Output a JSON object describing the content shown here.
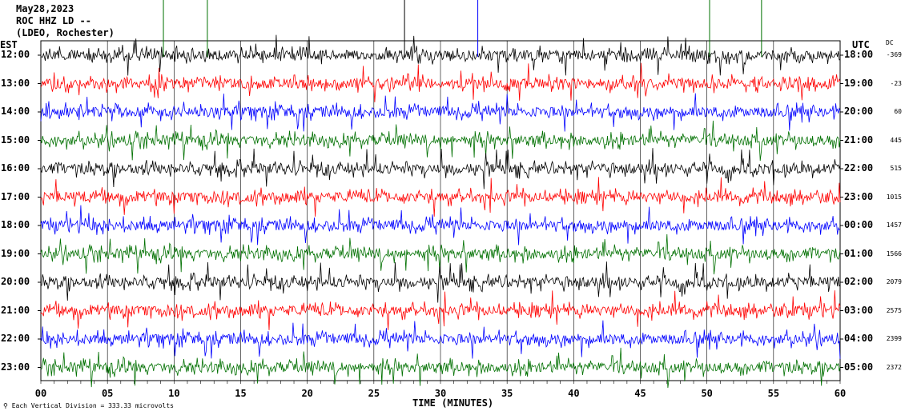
{
  "header": {
    "date": "May28,2023",
    "station": "ROC HHZ LD --",
    "network": "(LDEO, Rochester)"
  },
  "axes": {
    "left_title": "EST",
    "right_title": "UTC",
    "dc_title": "DC",
    "xlabel": "TIME (MINUTES)",
    "scale_note": "Each Vertical Division =  333.33 microvolts"
  },
  "chart_data": {
    "type": "line",
    "title": "May28,2023 ROC HHZ LD -- (LDEO, Rochester)",
    "xlabel": "TIME (MINUTES)",
    "xlim": [
      0,
      60
    ],
    "x_ticks": [
      "00",
      "05",
      "10",
      "15",
      "20",
      "25",
      "30",
      "35",
      "40",
      "45",
      "50",
      "55",
      "60"
    ],
    "color_cycle": [
      "#000000",
      "#ff0000",
      "#0000ff",
      "#007000"
    ],
    "rows": [
      {
        "est": "12:00",
        "utc": "18:00",
        "dc": "-369",
        "color": "#000000"
      },
      {
        "est": "13:00",
        "utc": "19:00",
        "dc": "-23",
        "color": "#ff0000"
      },
      {
        "est": "14:00",
        "utc": "20:00",
        "dc": "60",
        "color": "#0000ff"
      },
      {
        "est": "15:00",
        "utc": "21:00",
        "dc": "445",
        "color": "#007000"
      },
      {
        "est": "16:00",
        "utc": "22:00",
        "dc": "515",
        "color": "#000000"
      },
      {
        "est": "17:00",
        "utc": "23:00",
        "dc": "1015",
        "color": "#ff0000"
      },
      {
        "est": "18:00",
        "utc": "00:00",
        "dc": "1457",
        "color": "#0000ff"
      },
      {
        "est": "19:00",
        "utc": "01:00",
        "dc": "1566",
        "color": "#007000"
      },
      {
        "est": "20:00",
        "utc": "02:00",
        "dc": "2079",
        "color": "#000000"
      },
      {
        "est": "21:00",
        "utc": "03:00",
        "dc": "2575",
        "color": "#ff0000"
      },
      {
        "est": "22:00",
        "utc": "04:00",
        "dc": "2399",
        "color": "#0000ff"
      },
      {
        "est": "23:00",
        "utc": "05:00",
        "dc": "2372",
        "color": "#007000"
      }
    ],
    "grid": true
  }
}
